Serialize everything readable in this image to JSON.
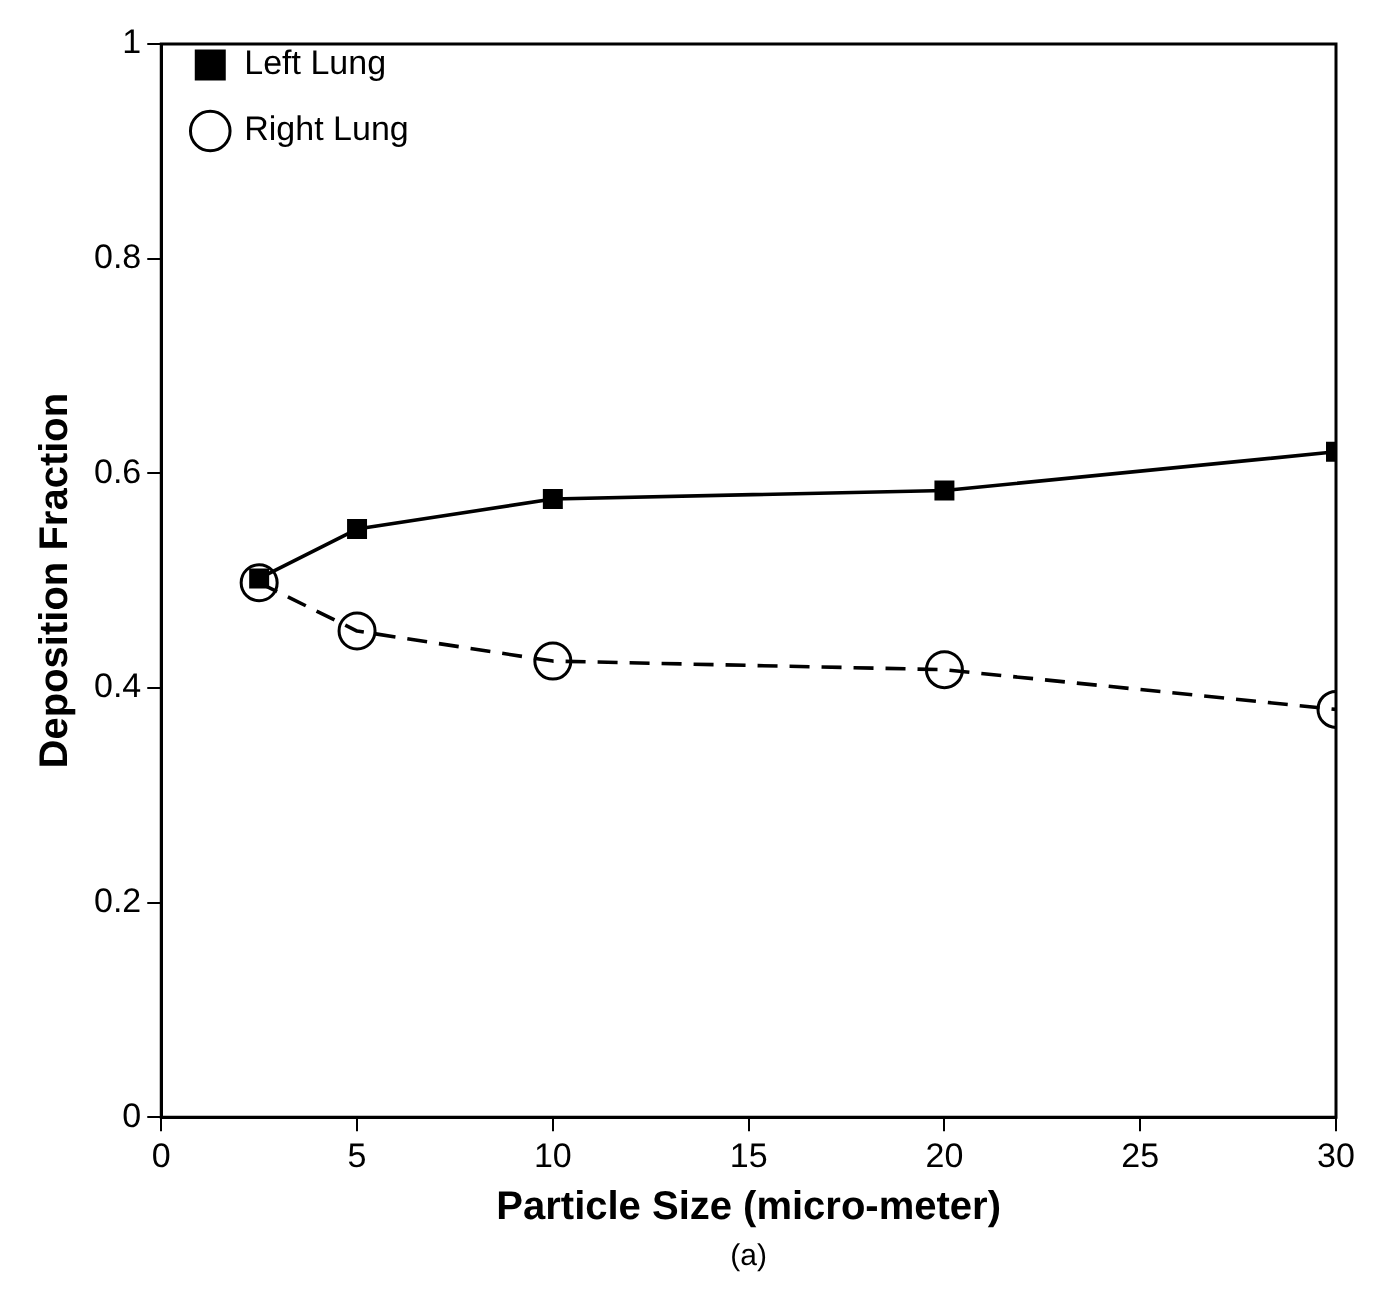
{
  "chart_data": {
    "type": "line",
    "xlabel": "Particle Size (micro-meter)",
    "ylabel": "Deposition Fraction",
    "annotations": [
      "(a)"
    ],
    "xlim": [
      0,
      30
    ],
    "xticks": [
      0,
      5,
      10,
      15,
      20,
      25,
      30
    ],
    "ylim": [
      0,
      1
    ],
    "yticks": [
      0,
      0.2,
      0.4,
      0.6,
      0.8,
      1
    ],
    "grid": false,
    "legend": "top left",
    "series": [
      {
        "name": "Left Lung",
        "color": "#000000",
        "marker": "square",
        "line_style": "solid",
        "x": [
          2.5,
          5,
          10,
          20,
          30
        ],
        "values": [
          0.502,
          0.548,
          0.576,
          0.584,
          0.62
        ]
      },
      {
        "name": "Right Lung",
        "color": "#000000",
        "marker": "circle",
        "line_style": "dashed",
        "x": [
          2.5,
          5,
          10,
          20,
          30
        ],
        "values": [
          0.498,
          0.453,
          0.425,
          0.417,
          0.38
        ]
      }
    ]
  }
}
